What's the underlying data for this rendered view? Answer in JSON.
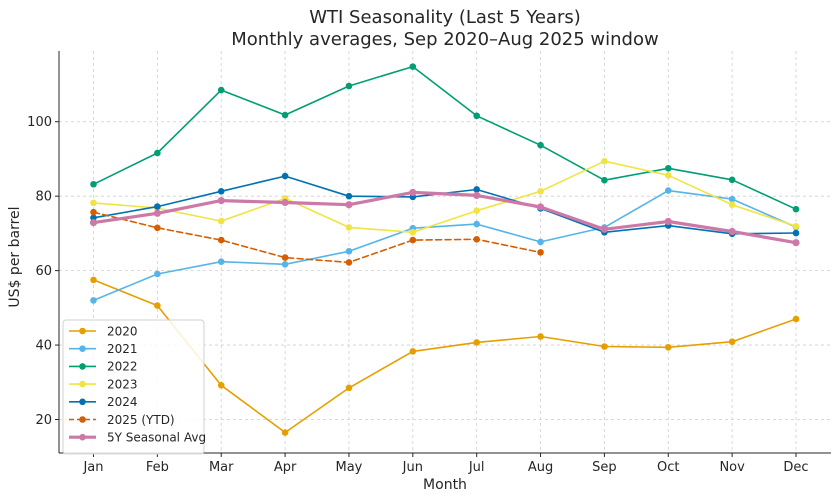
{
  "chart_data": {
    "type": "line",
    "title": "WTI Seasonality (Last 5 Years)",
    "subtitle": "Monthly averages, Sep 2020–Aug 2025 window",
    "xlabel": "Month",
    "ylabel": "US$ per barrel",
    "categories": [
      "Jan",
      "Feb",
      "Mar",
      "Apr",
      "May",
      "Jun",
      "Jul",
      "Aug",
      "Sep",
      "Oct",
      "Nov",
      "Dec"
    ],
    "ylim": [
      11,
      119
    ],
    "yticks": [
      20,
      40,
      60,
      80,
      100
    ],
    "grid": true,
    "legend_position": "bottom-left",
    "series": [
      {
        "name": "2020",
        "color": "#E69F00",
        "style": "solid",
        "width": 1.6,
        "values": [
          57.5,
          50.6,
          29.2,
          16.5,
          28.5,
          38.3,
          40.7,
          42.3,
          39.6,
          39.4,
          40.9,
          47.0
        ]
      },
      {
        "name": "2021",
        "color": "#56B4E9",
        "style": "solid",
        "width": 1.6,
        "values": [
          52.0,
          59.1,
          62.4,
          61.7,
          65.2,
          71.4,
          72.5,
          67.7,
          71.6,
          81.5,
          79.2,
          71.7
        ]
      },
      {
        "name": "2022",
        "color": "#009E73",
        "style": "solid",
        "width": 1.6,
        "values": [
          83.2,
          91.6,
          108.5,
          101.8,
          109.6,
          114.8,
          101.6,
          93.7,
          84.3,
          87.5,
          84.4,
          76.5
        ]
      },
      {
        "name": "2023",
        "color": "#F0E442",
        "style": "solid",
        "width": 1.6,
        "values": [
          78.2,
          76.8,
          73.3,
          79.4,
          71.6,
          70.3,
          76.1,
          81.3,
          89.4,
          85.6,
          77.7,
          71.9
        ]
      },
      {
        "name": "2024",
        "color": "#0072B2",
        "style": "solid",
        "width": 1.6,
        "values": [
          74.2,
          77.2,
          81.3,
          85.4,
          80.0,
          79.8,
          81.8,
          76.7,
          70.3,
          72.1,
          69.9,
          70.1
        ]
      },
      {
        "name": "2025 (YTD)",
        "color": "#D55E00",
        "style": "dashed",
        "width": 1.6,
        "values": [
          75.7,
          71.5,
          68.2,
          63.5,
          62.2,
          68.2,
          68.4,
          64.9,
          null,
          null,
          null,
          null
        ]
      },
      {
        "name": "5Y Seasonal Avg",
        "color": "#CC79A7",
        "style": "solid",
        "width": 3.2,
        "values": [
          72.9,
          75.4,
          78.8,
          78.3,
          77.7,
          81.0,
          80.2,
          77.1,
          71.1,
          73.2,
          70.5,
          67.5
        ]
      }
    ]
  }
}
